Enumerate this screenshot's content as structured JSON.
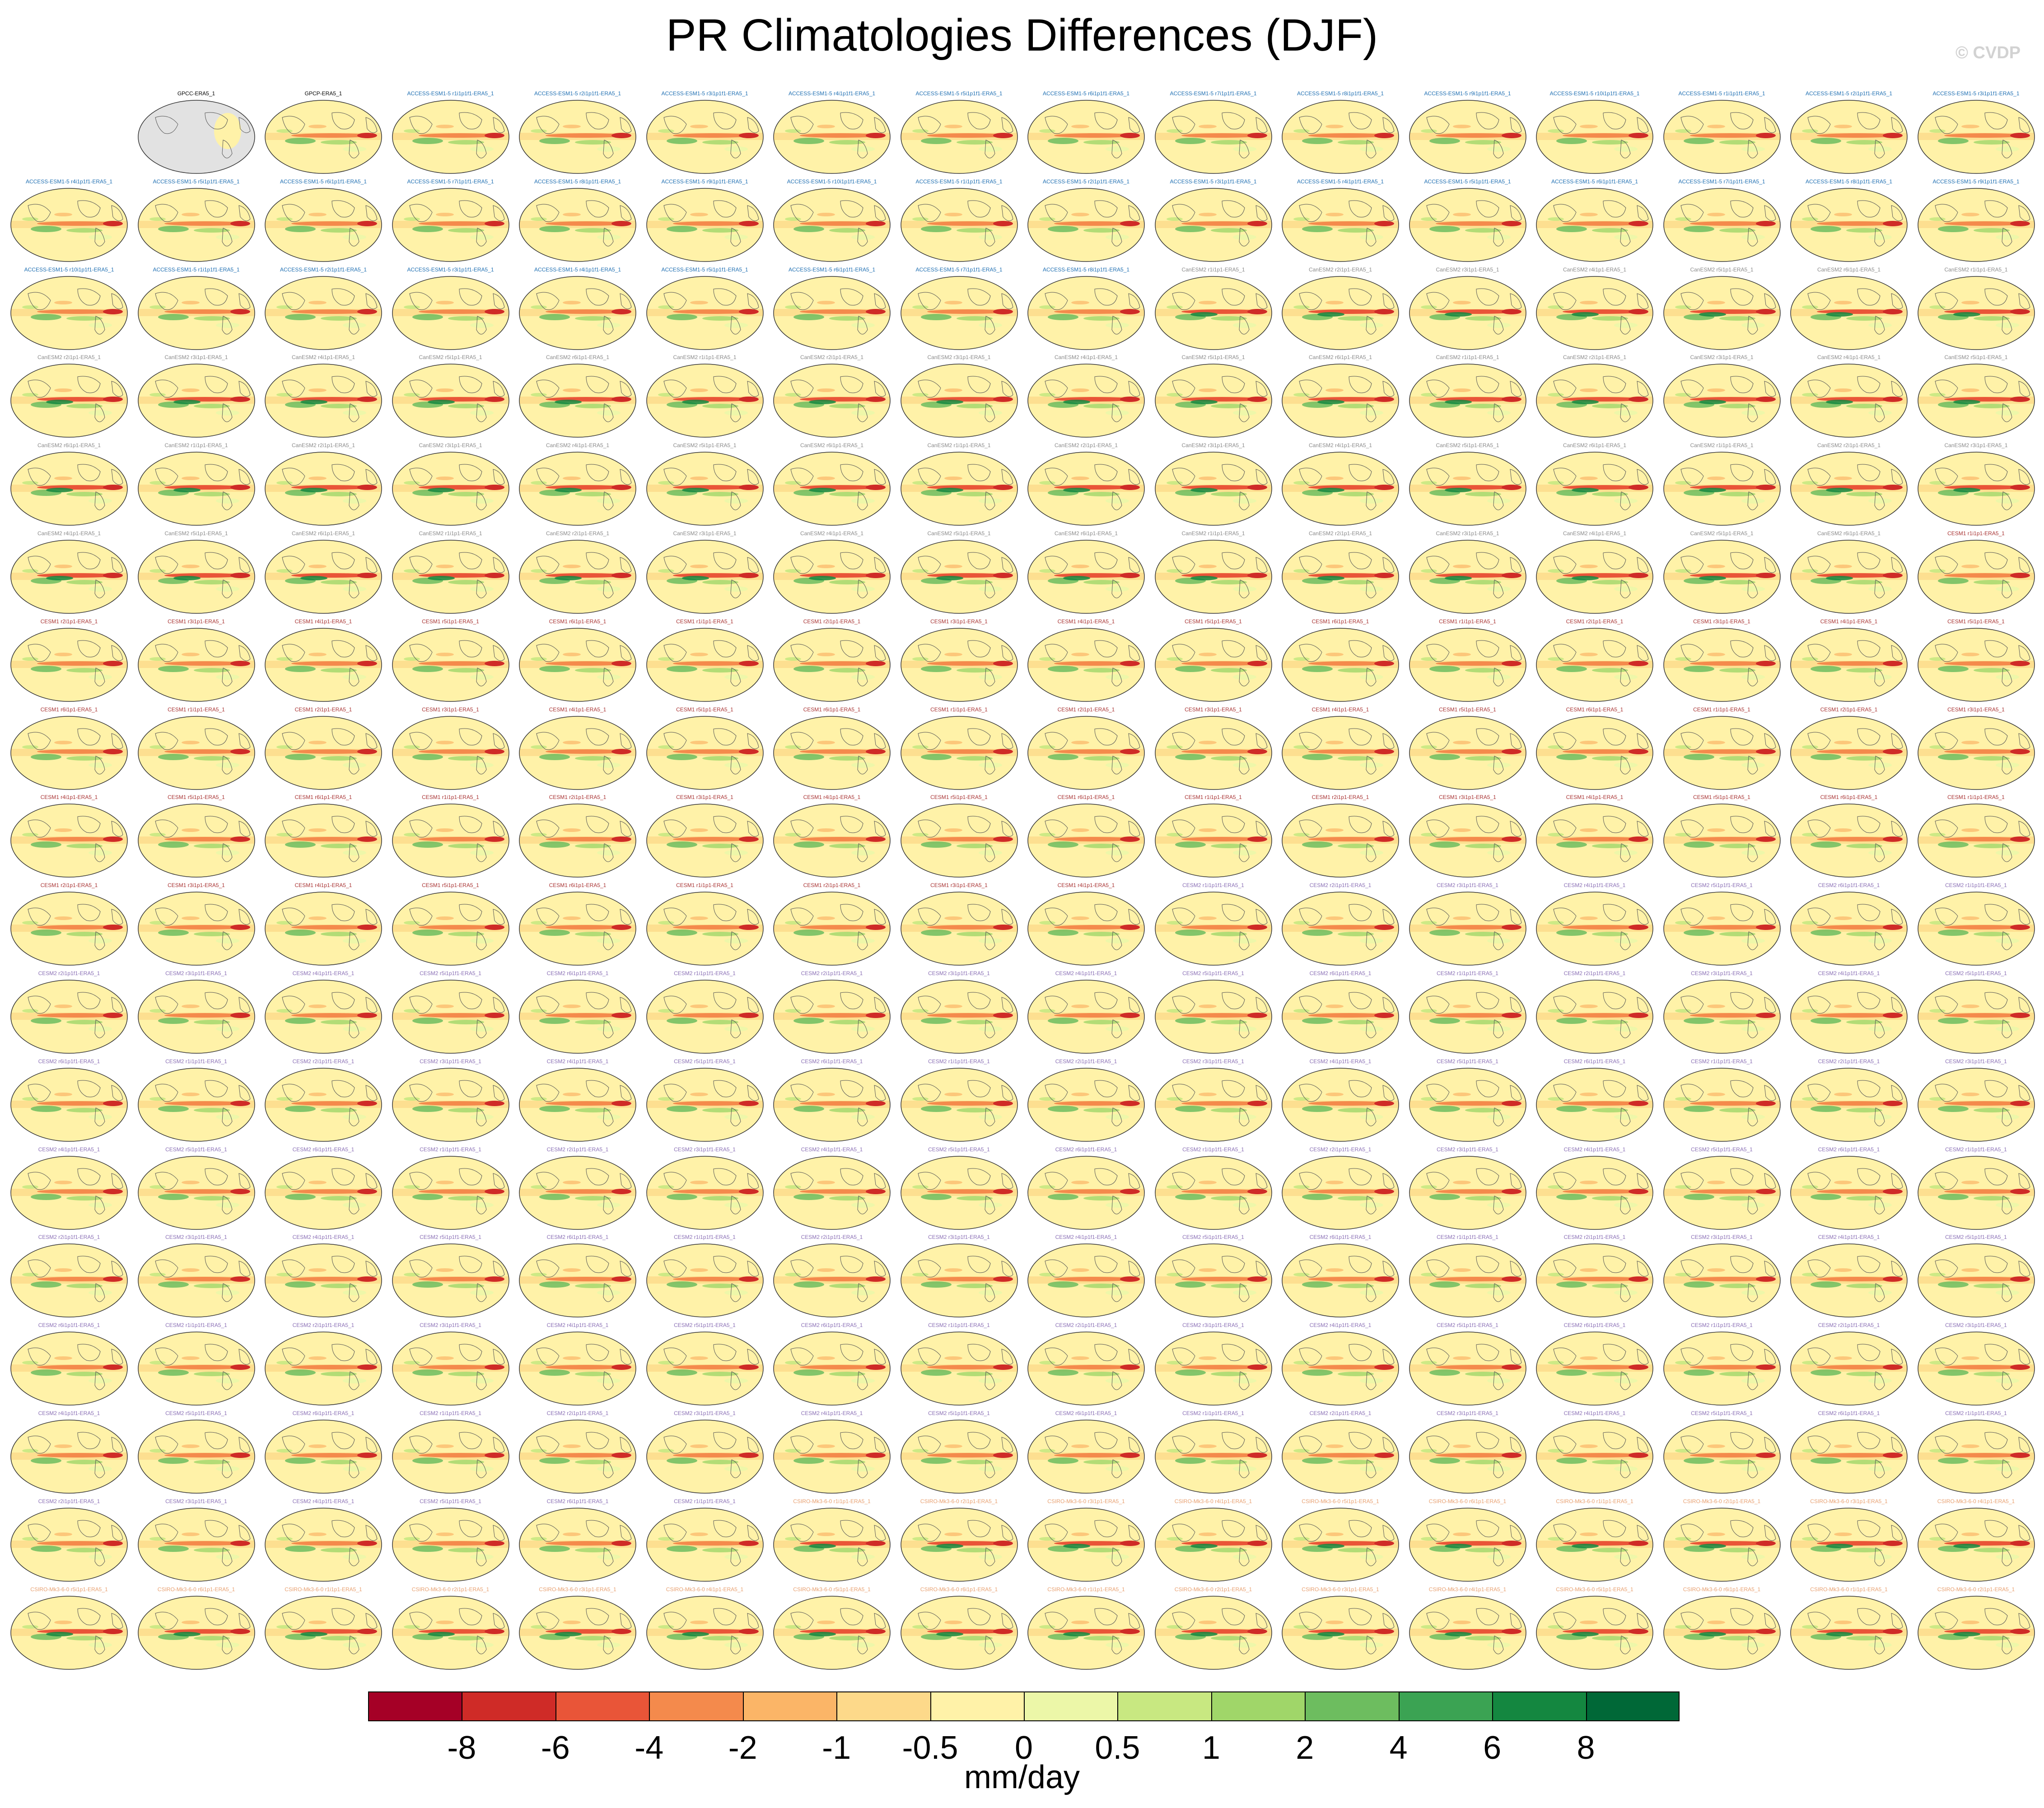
{
  "chart_data": {
    "type": "heatmap",
    "title": "PR Climatologies Differences (DJF)",
    "projection": "Mollweide global maps",
    "grid": {
      "rows": 18,
      "cols": 16,
      "first_row_blank_slots": 1
    },
    "panel_label_groups": [
      {
        "name": "observations",
        "color": "#000000",
        "labels": [
          "GPCC-ERA5_1",
          "GPCP-ERA5_1"
        ]
      },
      {
        "name": "ACCESS-ESM1-5",
        "color": "#1f6fb2",
        "labels": [
          "ACCESS-ESM1-5 r1i1p1f1-ERA5_1",
          "ACCESS-ESM1-5 r2i1p1f1-ERA5_1",
          "ACCESS-ESM1-5 r3i1p1f1-ERA5_1",
          "ACCESS-ESM1-5 r4i1p1f1-ERA5_1",
          "ACCESS-ESM1-5 r5i1p1f1-ERA5_1",
          "ACCESS-ESM1-5 r6i1p1f1-ERA5_1",
          "ACCESS-ESM1-5 r7i1p1f1-ERA5_1",
          "ACCESS-ESM1-5 r8i1p1f1-ERA5_1",
          "ACCESS-ESM1-5 r9i1p1f1-ERA5_1",
          "ACCESS-ESM1-5 r10i1p1f1-ERA5_1"
        ]
      },
      {
        "name": "CanESM2",
        "color": "#8a8a8a",
        "labels": [
          "CanESM2 r1i1p1-ERA5_1",
          "CanESM2 r2i1p1-ERA5_1",
          "CanESM2 r3i1p1-ERA5_1",
          "CanESM2 r4i1p1-ERA5_1",
          "CanESM2 r5i1p1-ERA5_1",
          "CanESM2 r6i1p1-ERA5_1"
        ]
      },
      {
        "name": "CESM1",
        "color": "#a83232",
        "labels": [
          "CESM1 r1i1p1-ERA5_1",
          "CESM1 r2i1p1-ERA5_1",
          "CESM1 r3i1p1-ERA5_1",
          "CESM1 r4i1p1-ERA5_1",
          "CESM1 r5i1p1-ERA5_1",
          "CESM1 r6i1p1-ERA5_1"
        ]
      },
      {
        "name": "CESM2",
        "color": "#8a6fb5",
        "labels": [
          "CESM2 r1i1p1f1-ERA5_1",
          "CESM2 r2i1p1f1-ERA5_1",
          "CESM2 r3i1p1f1-ERA5_1",
          "CESM2 r4i1p1f1-ERA5_1",
          "CESM2 r5i1p1f1-ERA5_1",
          "CESM2 r6i1p1f1-ERA5_1"
        ]
      },
      {
        "name": "CSIRO-Mk3-6-0",
        "color": "#e8a070",
        "labels": [
          "CSIRO-Mk3-6-0 r1i1p1-ERA5_1",
          "CSIRO-Mk3-6-0 r2i1p1-ERA5_1",
          "CSIRO-Mk3-6-0 r3i1p1-ERA5_1",
          "CSIRO-Mk3-6-0 r4i1p1-ERA5_1",
          "CSIRO-Mk3-6-0 r5i1p1-ERA5_1",
          "CSIRO-Mk3-6-0 r6i1p1-ERA5_1"
        ]
      }
    ],
    "colorbar": {
      "units": "mm/day",
      "ticks": [
        "-8",
        "-6",
        "-4",
        "-2",
        "-1",
        "-0.5",
        "0",
        "0.5",
        "1",
        "2",
        "4",
        "6",
        "8"
      ],
      "colors": [
        "#a50026",
        "#cf2b27",
        "#e95538",
        "#f48a4c",
        "#fbb567",
        "#fdd98a",
        "#fff2a8",
        "#ecf7a8",
        "#c8e881",
        "#a0d669",
        "#6dbd5f",
        "#3ba353",
        "#148740",
        "#006837"
      ]
    },
    "copyright": "© CVDP"
  }
}
